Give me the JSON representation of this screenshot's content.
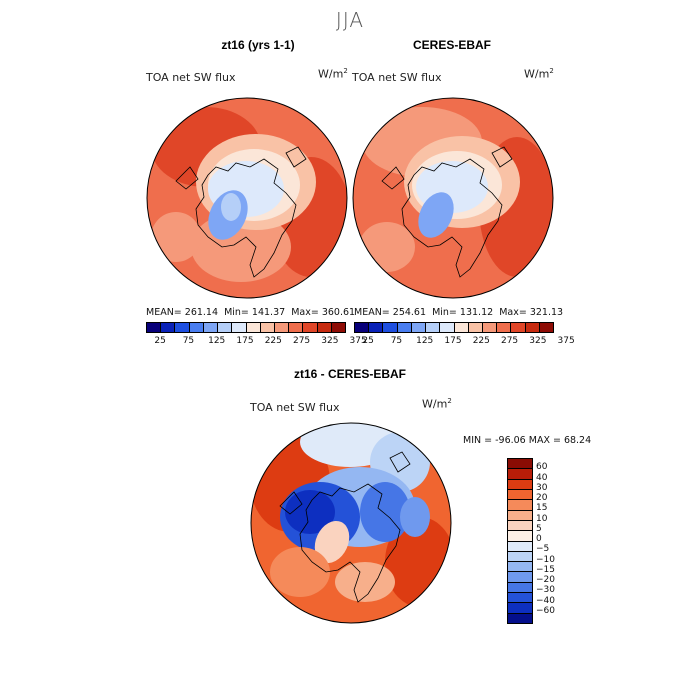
{
  "suptitle": "JJA",
  "panels": [
    {
      "title": "zt16 (yrs 1-1)",
      "variable": "TOA net SW flux",
      "units_base": "W/m",
      "units_exp": "2",
      "stats": {
        "mean": "MEAN= 261.14",
        "min": "Min= 141.37",
        "max": "Max= 360.61"
      }
    },
    {
      "title": "CERES-EBAF",
      "variable": "TOA net SW flux",
      "units_base": "W/m",
      "units_exp": "2",
      "stats": {
        "mean": "MEAN= 254.61",
        "min": "Min= 131.12",
        "max": "Max= 321.13"
      }
    }
  ],
  "abs_colorbar": {
    "colors": [
      "#08007a",
      "#0a22b8",
      "#1e4fe0",
      "#4a7ef0",
      "#7ea6f5",
      "#b5cff8",
      "#dde9fb",
      "#fbe6d8",
      "#f9c2a6",
      "#f5997a",
      "#ef6e4d",
      "#e04628",
      "#c72b10",
      "#8e0c05"
    ],
    "ticks": [
      "25",
      "75",
      "125",
      "175",
      "225",
      "275",
      "325",
      "375"
    ]
  },
  "diff": {
    "title": "zt16 - CERES-EBAF",
    "variable": "TOA net SW flux",
    "units_base": "W/m",
    "units_exp": "2",
    "minmax": "MIN = -96.06 MAX =  68.24",
    "colors": [
      "#8a0c04",
      "#b81d08",
      "#dd3c12",
      "#f06530",
      "#f58a5a",
      "#f7af8b",
      "#fad3bf",
      "#fdf0e6",
      "#dfeaf9",
      "#bcd4f6",
      "#94b7f2",
      "#6f99ee",
      "#4676e6",
      "#2452d8",
      "#0d2fc0",
      "#040f8c"
    ],
    "ticks": [
      "60",
      "40",
      "30",
      "20",
      "15",
      "10",
      "5",
      "0",
      "−5",
      "−10",
      "−15",
      "−20",
      "−30",
      "−40",
      "−60"
    ]
  }
}
